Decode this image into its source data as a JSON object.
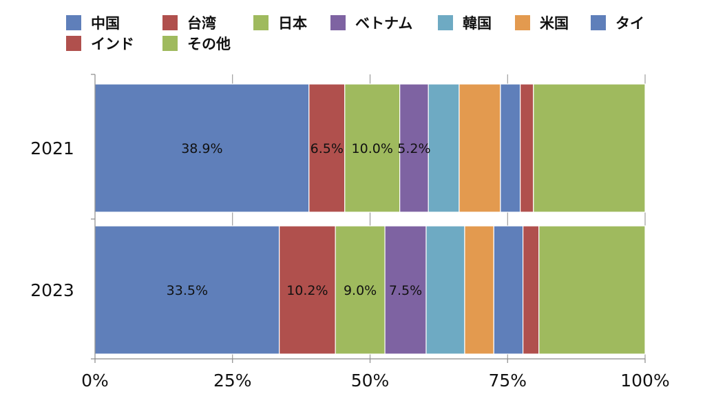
{
  "chart_data": {
    "type": "bar",
    "orientation": "horizontal",
    "stacked": true,
    "normalized": true,
    "categories": [
      "2021",
      "2023"
    ],
    "series": [
      {
        "name": "中国",
        "color": "#5f7fba",
        "values": [
          38.9,
          33.5
        ],
        "labels": [
          "38.9%",
          "33.5%"
        ]
      },
      {
        "name": "台湾",
        "color": "#b0504d",
        "values": [
          6.5,
          10.2
        ],
        "labels": [
          "6.5%",
          "10.2%"
        ]
      },
      {
        "name": "日本",
        "color": "#9fba5e",
        "values": [
          10.0,
          9.0
        ],
        "labels": [
          "10.0%",
          "9.0%"
        ]
      },
      {
        "name": "ベトナム",
        "color": "#7e63a2",
        "values": [
          5.2,
          7.5
        ],
        "labels": [
          "5.2%",
          "7.5%"
        ]
      },
      {
        "name": "韓国",
        "color": "#6eaac3",
        "values": [
          5.6,
          7.0
        ],
        "labels": [
          "",
          ""
        ]
      },
      {
        "name": "米国",
        "color": "#e39a4f",
        "values": [
          7.5,
          5.3
        ],
        "labels": [
          "",
          ""
        ]
      },
      {
        "name": "タイ",
        "color": "#5f7fba",
        "values": [
          3.6,
          5.3
        ],
        "labels": [
          "",
          ""
        ]
      },
      {
        "name": "インド",
        "color": "#b0504d",
        "values": [
          2.4,
          2.9
        ],
        "labels": [
          "",
          ""
        ]
      },
      {
        "name": "その他",
        "color": "#9fba5e",
        "values": [
          20.3,
          19.3
        ],
        "labels": [
          "",
          ""
        ]
      }
    ],
    "xlim": [
      0,
      100
    ],
    "xticks": [
      "0%",
      "25%",
      "50%",
      "75%",
      "100%"
    ],
    "grid": true,
    "legend_position": "top"
  }
}
